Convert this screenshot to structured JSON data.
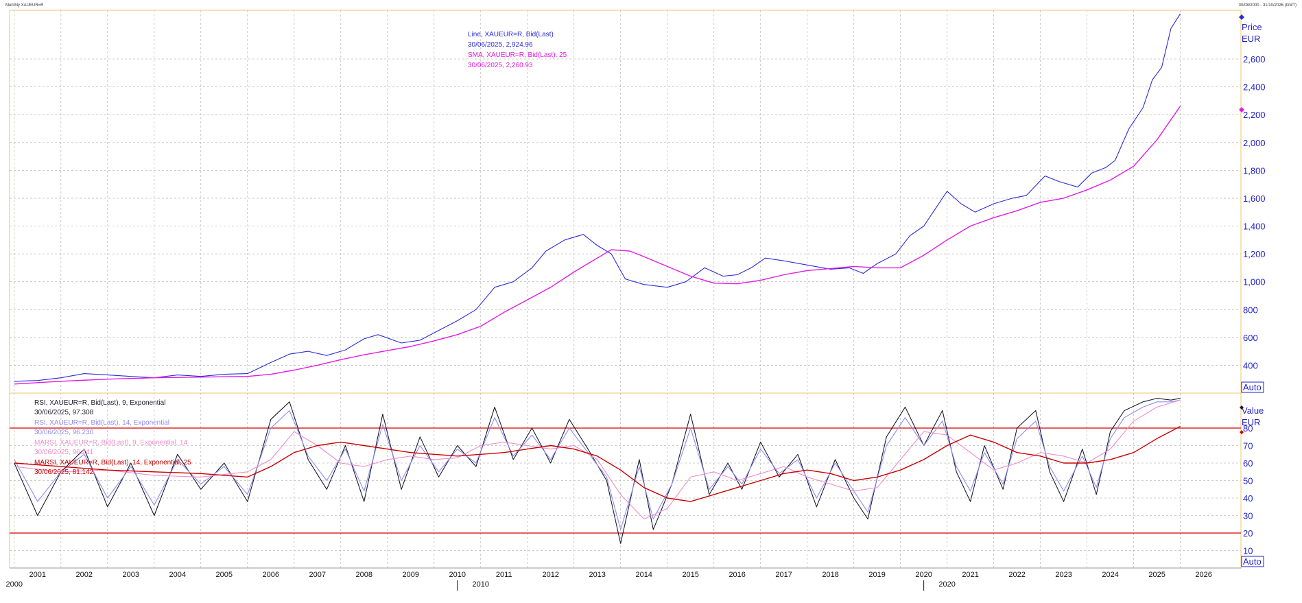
{
  "header": {
    "title": "Monthly XAUEUR=R",
    "date_range": "30/08/2000 - 31/10/2026 (GMT)"
  },
  "colors": {
    "price": "#2b2bd9",
    "sma": "#e21be2",
    "rsi9": "#1a1a2e",
    "rsi14": "#8c8cf0",
    "marsi9": "#f08cc8",
    "marsi14": "#c80000",
    "frame": "#f2c66b",
    "grid": "#bdbdbd",
    "axis_text": "#1f1fc8"
  },
  "top_legend": {
    "line_label": "Line, XAUEUR=R, Bid(Last)",
    "line_value": "30/06/2025, 2,924.96",
    "sma_label": "SMA, XAUEUR=R, Bid(Last),  25",
    "sma_value": "30/06/2025, 2,260.93"
  },
  "bottom_legend": {
    "rsi9_label": "RSI, XAUEUR=R, Bid(Last),  9, Exponential",
    "rsi9_value": "30/06/2025, 97.308",
    "rsi14_label": "RSI, XAUEUR=R, Bid(Last),  14, Exponential",
    "rsi14_value": "30/06/2025, 96.230",
    "marsi9_label": "MARSI, XAUEUR=R, Bid(Last),  9, Exponential, 14",
    "marsi9_value": "30/06/2025, 96.241",
    "marsi14_label": "MARSI, XAUEUR=R, Bid(Last),  14, Exponential, 25",
    "marsi14_value": "30/06/2025, 81.142"
  },
  "price_axis": {
    "title1": "Price",
    "title2": "EUR",
    "auto": "Auto"
  },
  "value_axis": {
    "title1": "Value",
    "title2": "EUR",
    "auto": "Auto"
  },
  "chart_data": [
    {
      "type": "line",
      "panel": "price",
      "ylim": [
        200,
        2950
      ],
      "yticks": [
        400,
        600,
        800,
        1000,
        1200,
        1400,
        1600,
        1800,
        2000,
        2200,
        2400,
        2600
      ],
      "ytick_labels": [
        "400",
        "600",
        "800",
        "1,000",
        "1,200",
        "1,400",
        "1,600",
        "1,800",
        "2,000",
        "2,200",
        "2,400",
        "2,600"
      ],
      "x_range": [
        2000.4,
        2026.8
      ],
      "series": [
        {
          "name": "Line, XAUEUR=R, Bid(Last)",
          "key": "price",
          "x": [
            2000.5,
            2001.0,
            2001.5,
            2002.0,
            2002.5,
            2003.0,
            2003.5,
            2004.0,
            2004.5,
            2005.0,
            2005.5,
            2006.0,
            2006.4,
            2006.8,
            2007.2,
            2007.6,
            2008.0,
            2008.3,
            2008.8,
            2009.2,
            2009.6,
            2010.0,
            2010.4,
            2010.8,
            2011.2,
            2011.6,
            2011.9,
            2012.3,
            2012.7,
            2013.0,
            2013.3,
            2013.6,
            2014.0,
            2014.5,
            2014.9,
            2015.3,
            2015.7,
            2016.0,
            2016.3,
            2016.6,
            2017.0,
            2017.5,
            2018.0,
            2018.4,
            2018.7,
            2019.0,
            2019.4,
            2019.7,
            2020.0,
            2020.2,
            2020.5,
            2020.8,
            2021.1,
            2021.5,
            2021.9,
            2022.2,
            2022.6,
            2022.9,
            2023.3,
            2023.6,
            2023.9,
            2024.1,
            2024.4,
            2024.7,
            2024.9,
            2025.1,
            2025.3,
            2025.5
          ],
          "y": [
            285,
            290,
            310,
            340,
            330,
            320,
            310,
            330,
            320,
            335,
            340,
            420,
            480,
            500,
            470,
            510,
            590,
            620,
            560,
            580,
            650,
            720,
            800,
            960,
            1000,
            1100,
            1220,
            1300,
            1340,
            1260,
            1200,
            1020,
            980,
            960,
            1000,
            1100,
            1040,
            1050,
            1100,
            1170,
            1150,
            1120,
            1090,
            1100,
            1060,
            1130,
            1200,
            1330,
            1400,
            1500,
            1650,
            1560,
            1500,
            1560,
            1600,
            1620,
            1760,
            1720,
            1680,
            1780,
            1820,
            1870,
            2100,
            2250,
            2450,
            2540,
            2820,
            2925
          ]
        },
        {
          "name": "SMA, XAUEUR=R, Bid(Last),  25",
          "key": "sma",
          "x": [
            2000.5,
            2001.5,
            2002.5,
            2003.5,
            2004.5,
            2005.5,
            2006.0,
            2006.5,
            2007.0,
            2007.5,
            2008.0,
            2008.5,
            2009.0,
            2009.5,
            2010.0,
            2010.5,
            2011.0,
            2011.5,
            2012.0,
            2012.5,
            2013.0,
            2013.3,
            2013.7,
            2014.0,
            2014.5,
            2015.0,
            2015.5,
            2016.0,
            2016.5,
            2017.0,
            2017.5,
            2018.0,
            2018.5,
            2019.0,
            2019.5,
            2020.0,
            2020.5,
            2021.0,
            2021.5,
            2022.0,
            2022.5,
            2023.0,
            2023.5,
            2024.0,
            2024.5,
            2025.0,
            2025.5
          ],
          "y": [
            265,
            285,
            300,
            310,
            315,
            320,
            335,
            365,
            400,
            440,
            475,
            505,
            535,
            575,
            620,
            680,
            780,
            870,
            960,
            1070,
            1170,
            1230,
            1220,
            1180,
            1110,
            1040,
            990,
            985,
            1010,
            1050,
            1080,
            1095,
            1110,
            1100,
            1100,
            1190,
            1300,
            1400,
            1460,
            1510,
            1570,
            1600,
            1660,
            1730,
            1830,
            2020,
            2261
          ]
        }
      ]
    },
    {
      "type": "line",
      "panel": "oscillator",
      "ylim": [
        0,
        100
      ],
      "yticks": [
        10,
        20,
        30,
        40,
        50,
        60,
        70,
        80
      ],
      "ytick_labels": [
        "10",
        "20",
        "30",
        "40",
        "50",
        "60",
        "70",
        "80"
      ],
      "levels": [
        20,
        80
      ],
      "x_range": [
        2000.4,
        2026.8
      ],
      "series": [
        {
          "name": "RSI, XAUEUR=R, Bid(Last),  9, Exponential",
          "key": "rsi9",
          "x": [
            2000.5,
            2001.0,
            2001.5,
            2002.0,
            2002.5,
            2003.0,
            2003.5,
            2004.0,
            2004.5,
            2005.0,
            2005.5,
            2006.0,
            2006.4,
            2006.8,
            2007.2,
            2007.6,
            2008.0,
            2008.4,
            2008.8,
            2009.2,
            2009.6,
            2010.0,
            2010.4,
            2010.8,
            2011.2,
            2011.6,
            2012.0,
            2012.4,
            2012.8,
            2013.2,
            2013.5,
            2013.9,
            2014.2,
            2014.6,
            2015.0,
            2015.4,
            2015.8,
            2016.1,
            2016.5,
            2016.9,
            2017.3,
            2017.7,
            2018.1,
            2018.5,
            2018.8,
            2019.2,
            2019.6,
            2020.0,
            2020.4,
            2020.7,
            2021.0,
            2021.3,
            2021.7,
            2022.0,
            2022.4,
            2022.7,
            2023.0,
            2023.4,
            2023.7,
            2024.0,
            2024.3,
            2024.7,
            2025.0,
            2025.3,
            2025.5
          ],
          "y": [
            60,
            30,
            55,
            68,
            35,
            60,
            30,
            65,
            45,
            60,
            38,
            85,
            95,
            62,
            45,
            70,
            38,
            88,
            45,
            75,
            52,
            70,
            58,
            92,
            62,
            80,
            60,
            85,
            68,
            50,
            14,
            62,
            22,
            48,
            88,
            42,
            60,
            45,
            72,
            52,
            65,
            35,
            62,
            40,
            28,
            75,
            92,
            70,
            90,
            55,
            38,
            70,
            45,
            80,
            90,
            55,
            38,
            68,
            42,
            78,
            90,
            95,
            97,
            96,
            97
          ]
        },
        {
          "name": "RSI, XAUEUR=R, Bid(Last),  14, Exponential",
          "key": "rsi14",
          "x": [
            2000.5,
            2001.0,
            2001.5,
            2002.0,
            2002.5,
            2003.0,
            2003.5,
            2004.0,
            2004.5,
            2005.0,
            2005.5,
            2006.0,
            2006.4,
            2006.8,
            2007.2,
            2007.6,
            2008.0,
            2008.4,
            2008.8,
            2009.2,
            2009.6,
            2010.0,
            2010.4,
            2010.8,
            2011.2,
            2011.6,
            2012.0,
            2012.4,
            2012.8,
            2013.2,
            2013.5,
            2013.9,
            2014.2,
            2014.6,
            2015.0,
            2015.4,
            2015.8,
            2016.1,
            2016.5,
            2016.9,
            2017.3,
            2017.7,
            2018.1,
            2018.5,
            2018.8,
            2019.2,
            2019.6,
            2020.0,
            2020.4,
            2020.7,
            2021.0,
            2021.3,
            2021.7,
            2022.0,
            2022.4,
            2022.7,
            2023.0,
            2023.4,
            2023.7,
            2024.0,
            2024.3,
            2024.7,
            2025.0,
            2025.3,
            2025.5
          ],
          "y": [
            62,
            38,
            55,
            65,
            40,
            58,
            36,
            62,
            48,
            58,
            42,
            80,
            90,
            64,
            50,
            68,
            44,
            82,
            50,
            70,
            55,
            68,
            60,
            86,
            64,
            76,
            62,
            80,
            66,
            52,
            22,
            58,
            28,
            48,
            80,
            45,
            58,
            48,
            68,
            54,
            62,
            40,
            60,
            44,
            32,
            70,
            86,
            70,
            84,
            58,
            44,
            66,
            48,
            74,
            84,
            58,
            44,
            64,
            46,
            74,
            86,
            92,
            95,
            95,
            96
          ]
        },
        {
          "name": "MARSI, XAUEUR=R, Bid(Last),  9, Exponential, 14",
          "key": "marsi9",
          "x": [
            2000.5,
            2001.5,
            2002.5,
            2003.5,
            2004.5,
            2005.5,
            2006.0,
            2006.5,
            2007.0,
            2007.5,
            2008.0,
            2008.5,
            2009.0,
            2009.5,
            2010.0,
            2010.5,
            2011.0,
            2011.5,
            2012.0,
            2012.5,
            2013.0,
            2013.5,
            2014.0,
            2014.5,
            2015.0,
            2015.5,
            2016.0,
            2016.5,
            2017.0,
            2017.5,
            2018.0,
            2018.5,
            2019.0,
            2019.5,
            2020.0,
            2020.5,
            2021.0,
            2021.5,
            2022.0,
            2022.5,
            2023.0,
            2023.5,
            2024.0,
            2024.5,
            2025.0,
            2025.5
          ],
          "y": [
            58,
            55,
            56,
            53,
            52,
            55,
            62,
            78,
            70,
            60,
            58,
            62,
            64,
            62,
            63,
            70,
            72,
            70,
            68,
            70,
            62,
            42,
            28,
            34,
            52,
            55,
            50,
            54,
            58,
            52,
            48,
            44,
            46,
            62,
            78,
            76,
            66,
            56,
            60,
            66,
            64,
            60,
            68,
            84,
            92,
            96
          ]
        },
        {
          "name": "MARSI, XAUEUR=R, Bid(Last),  14, Exponential, 25",
          "key": "marsi14",
          "x": [
            2000.5,
            2001.5,
            2002.5,
            2003.5,
            2004.5,
            2005.5,
            2006.0,
            2006.5,
            2007.0,
            2007.5,
            2008.0,
            2008.5,
            2009.0,
            2009.5,
            2010.0,
            2010.5,
            2011.0,
            2011.5,
            2012.0,
            2012.5,
            2013.0,
            2013.5,
            2014.0,
            2014.5,
            2015.0,
            2015.5,
            2016.0,
            2016.5,
            2017.0,
            2017.5,
            2018.0,
            2018.5,
            2019.0,
            2019.5,
            2020.0,
            2020.5,
            2021.0,
            2021.5,
            2022.0,
            2022.5,
            2023.0,
            2023.5,
            2024.0,
            2024.5,
            2025.0,
            2025.5
          ],
          "y": [
            60,
            58,
            56,
            55,
            54,
            52,
            58,
            66,
            70,
            72,
            70,
            68,
            66,
            65,
            64,
            65,
            66,
            68,
            70,
            68,
            64,
            56,
            46,
            40,
            38,
            42,
            46,
            50,
            54,
            56,
            54,
            50,
            52,
            56,
            62,
            70,
            76,
            72,
            66,
            64,
            60,
            60,
            62,
            66,
            74,
            81
          ]
        }
      ]
    }
  ],
  "x_axis": {
    "years": [
      "2001",
      "2002",
      "2003",
      "2004",
      "2005",
      "2006",
      "2007",
      "2008",
      "2009",
      "2010",
      "2011",
      "2012",
      "2013",
      "2014",
      "2015",
      "2016",
      "2017",
      "2018",
      "2019",
      "2020",
      "2021",
      "2022",
      "2023",
      "2024",
      "2025",
      "2026"
    ],
    "decades": [
      "2000",
      "2010",
      "2020"
    ]
  }
}
